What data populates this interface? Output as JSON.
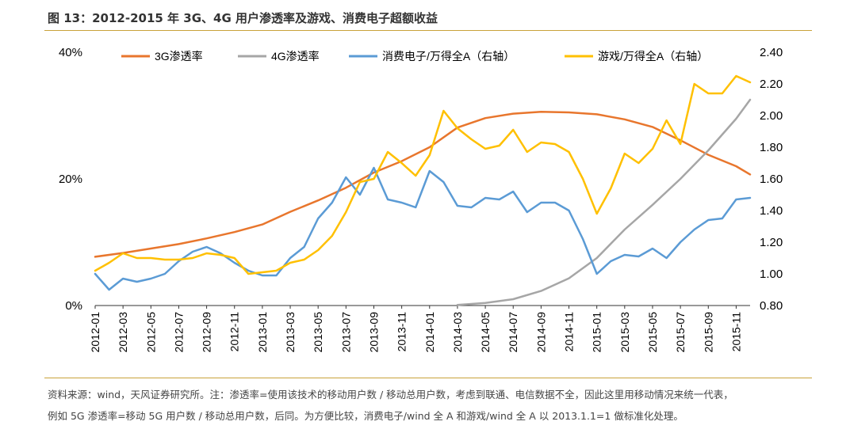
{
  "figure": {
    "title": "图 13：2012-2015 年 3G、4G 用户渗透率及游戏、消费电子超额收益",
    "note_line1": "资料来源：wind，天风证券研究所。注：渗透率=使用该技术的移动用户数 / 移动总用户数，考虑到联通、电信数据不全，因此这里用移动情况来统一代表，",
    "note_line2": "例如 5G 渗透率=移动 5G 用户数 / 移动总用户数，后同。为方便比较，消费电子/wind 全 A 和游戏/wind 全 A 以 2013.1.1=1 做标准化处理。"
  },
  "chart_data": {
    "type": "line",
    "x_start": "2012-01",
    "x_end": "2015-12",
    "x_tick_labels": [
      "2012-01",
      "2012-03",
      "2012-05",
      "2012-07",
      "2012-09",
      "2012-11",
      "2013-01",
      "2013-03",
      "2013-05",
      "2013-07",
      "2013-09",
      "2013-11",
      "2014-01",
      "2014-03",
      "2014-05",
      "2014-07",
      "2014-09",
      "2014-11",
      "2015-01",
      "2015-03",
      "2015-05",
      "2015-07",
      "2015-09",
      "2015-11"
    ],
    "y_left": {
      "ylim": [
        0,
        40
      ],
      "ticks": [
        "0%",
        "20%",
        "40%"
      ]
    },
    "y_right": {
      "ylim": [
        0.8,
        2.4
      ],
      "ticks": [
        "0.80",
        "1.00",
        "1.20",
        "1.40",
        "1.60",
        "1.80",
        "2.00",
        "2.20",
        "2.40"
      ]
    },
    "grid": false,
    "legend_position": "top",
    "series": [
      {
        "name": "3G渗透率",
        "axis": "left",
        "color": "#e8762d",
        "x": [
          "2012-01",
          "2012-03",
          "2012-05",
          "2012-07",
          "2012-09",
          "2012-11",
          "2013-01",
          "2013-03",
          "2013-05",
          "2013-07",
          "2013-09",
          "2013-11",
          "2014-01",
          "2014-03",
          "2014-05",
          "2014-07",
          "2014-09",
          "2014-11",
          "2015-01",
          "2015-03",
          "2015-05",
          "2015-07",
          "2015-09",
          "2015-11",
          "2015-12"
        ],
        "values": [
          7.7,
          8.3,
          9.0,
          9.7,
          10.6,
          11.6,
          12.8,
          14.8,
          16.6,
          18.6,
          21.0,
          22.8,
          25.0,
          28.1,
          29.6,
          30.3,
          30.6,
          30.5,
          30.2,
          29.4,
          28.2,
          26.1,
          23.8,
          22.0,
          20.7
        ]
      },
      {
        "name": "4G渗透率",
        "axis": "left",
        "color": "#a6a6a6",
        "x": [
          "2014-03",
          "2014-05",
          "2014-07",
          "2014-09",
          "2014-11",
          "2015-01",
          "2015-03",
          "2015-05",
          "2015-07",
          "2015-09",
          "2015-11",
          "2015-12"
        ],
        "values": [
          0.1,
          0.4,
          1.0,
          2.3,
          4.3,
          7.5,
          12.0,
          15.9,
          20.0,
          24.5,
          29.5,
          32.5
        ]
      },
      {
        "name": "消费电子/万得全A（右轴）",
        "axis": "right",
        "color": "#5b9bd5",
        "x": [
          "2012-01",
          "2012-02",
          "2012-03",
          "2012-04",
          "2012-05",
          "2012-06",
          "2012-07",
          "2012-08",
          "2012-09",
          "2012-10",
          "2012-11",
          "2012-12",
          "2013-01",
          "2013-02",
          "2013-03",
          "2013-04",
          "2013-05",
          "2013-06",
          "2013-07",
          "2013-08",
          "2013-09",
          "2013-10",
          "2013-11",
          "2013-12",
          "2014-01",
          "2014-02",
          "2014-03",
          "2014-04",
          "2014-05",
          "2014-06",
          "2014-07",
          "2014-08",
          "2014-09",
          "2014-10",
          "2014-11",
          "2014-12",
          "2015-01",
          "2015-02",
          "2015-03",
          "2015-04",
          "2015-05",
          "2015-06",
          "2015-07",
          "2015-08",
          "2015-09",
          "2015-10",
          "2015-11",
          "2015-12"
        ],
        "values": [
          1.0,
          0.9,
          0.97,
          0.95,
          0.97,
          1.0,
          1.08,
          1.14,
          1.17,
          1.13,
          1.07,
          1.02,
          0.99,
          0.99,
          1.1,
          1.17,
          1.35,
          1.45,
          1.61,
          1.5,
          1.67,
          1.47,
          1.45,
          1.42,
          1.65,
          1.58,
          1.43,
          1.42,
          1.48,
          1.47,
          1.52,
          1.39,
          1.45,
          1.45,
          1.4,
          1.22,
          1.0,
          1.08,
          1.12,
          1.11,
          1.16,
          1.1,
          1.2,
          1.28,
          1.34,
          1.35,
          1.47,
          1.48
        ]
      },
      {
        "name": "游戏/万得全A（右轴）",
        "axis": "right",
        "color": "#ffc000",
        "x": [
          "2012-01",
          "2012-02",
          "2012-03",
          "2012-04",
          "2012-05",
          "2012-06",
          "2012-07",
          "2012-08",
          "2012-09",
          "2012-10",
          "2012-11",
          "2012-12",
          "2013-01",
          "2013-02",
          "2013-03",
          "2013-04",
          "2013-05",
          "2013-06",
          "2013-07",
          "2013-08",
          "2013-09",
          "2013-10",
          "2013-11",
          "2013-12",
          "2014-01",
          "2014-02",
          "2014-03",
          "2014-04",
          "2014-05",
          "2014-06",
          "2014-07",
          "2014-08",
          "2014-09",
          "2014-10",
          "2014-11",
          "2014-12",
          "2015-01",
          "2015-02",
          "2015-03",
          "2015-04",
          "2015-05",
          "2015-06",
          "2015-07",
          "2015-08",
          "2015-09",
          "2015-10",
          "2015-11",
          "2015-12"
        ],
        "values": [
          1.02,
          1.07,
          1.13,
          1.1,
          1.1,
          1.09,
          1.09,
          1.1,
          1.13,
          1.12,
          1.1,
          1.0,
          1.01,
          1.02,
          1.07,
          1.09,
          1.15,
          1.24,
          1.39,
          1.58,
          1.6,
          1.77,
          1.7,
          1.62,
          1.75,
          2.03,
          1.92,
          1.85,
          1.79,
          1.81,
          1.91,
          1.77,
          1.83,
          1.82,
          1.77,
          1.6,
          1.38,
          1.54,
          1.76,
          1.7,
          1.79,
          1.97,
          1.82,
          2.2,
          2.14,
          2.14,
          2.25,
          2.21
        ]
      }
    ]
  }
}
